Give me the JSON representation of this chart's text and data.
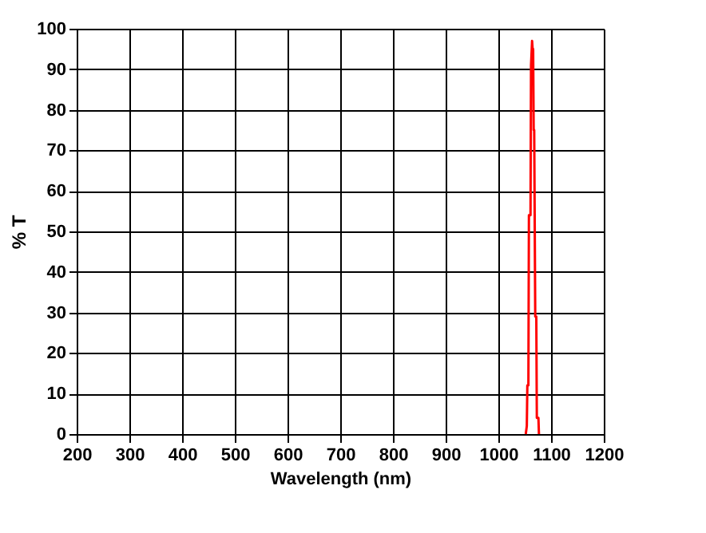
{
  "chart_data": {
    "type": "line",
    "xlabel": "Wavelength (nm)",
    "ylabel": "% T",
    "x": [
      1052,
      1054,
      1055,
      1057,
      1058,
      1061,
      1062,
      1064,
      1065,
      1066,
      1067,
      1068,
      1070,
      1072,
      1073,
      1076,
      1077
    ],
    "series": [
      {
        "color": "#ff0000",
        "values": [
          0,
          2,
          12,
          12,
          54,
          54,
          91,
          97,
          95,
          95,
          75,
          75,
          29,
          29,
          4,
          4,
          0
        ]
      }
    ],
    "xlim": [
      200,
      1200
    ],
    "xticks": [
      200,
      300,
      400,
      500,
      600,
      700,
      800,
      900,
      1000,
      1100,
      1200
    ],
    "ylim": [
      0,
      100
    ],
    "yticks": [
      0,
      10,
      20,
      30,
      40,
      50,
      60,
      70,
      80,
      90,
      100
    ],
    "grid": true,
    "marker": "none",
    "line_style": "solid"
  }
}
